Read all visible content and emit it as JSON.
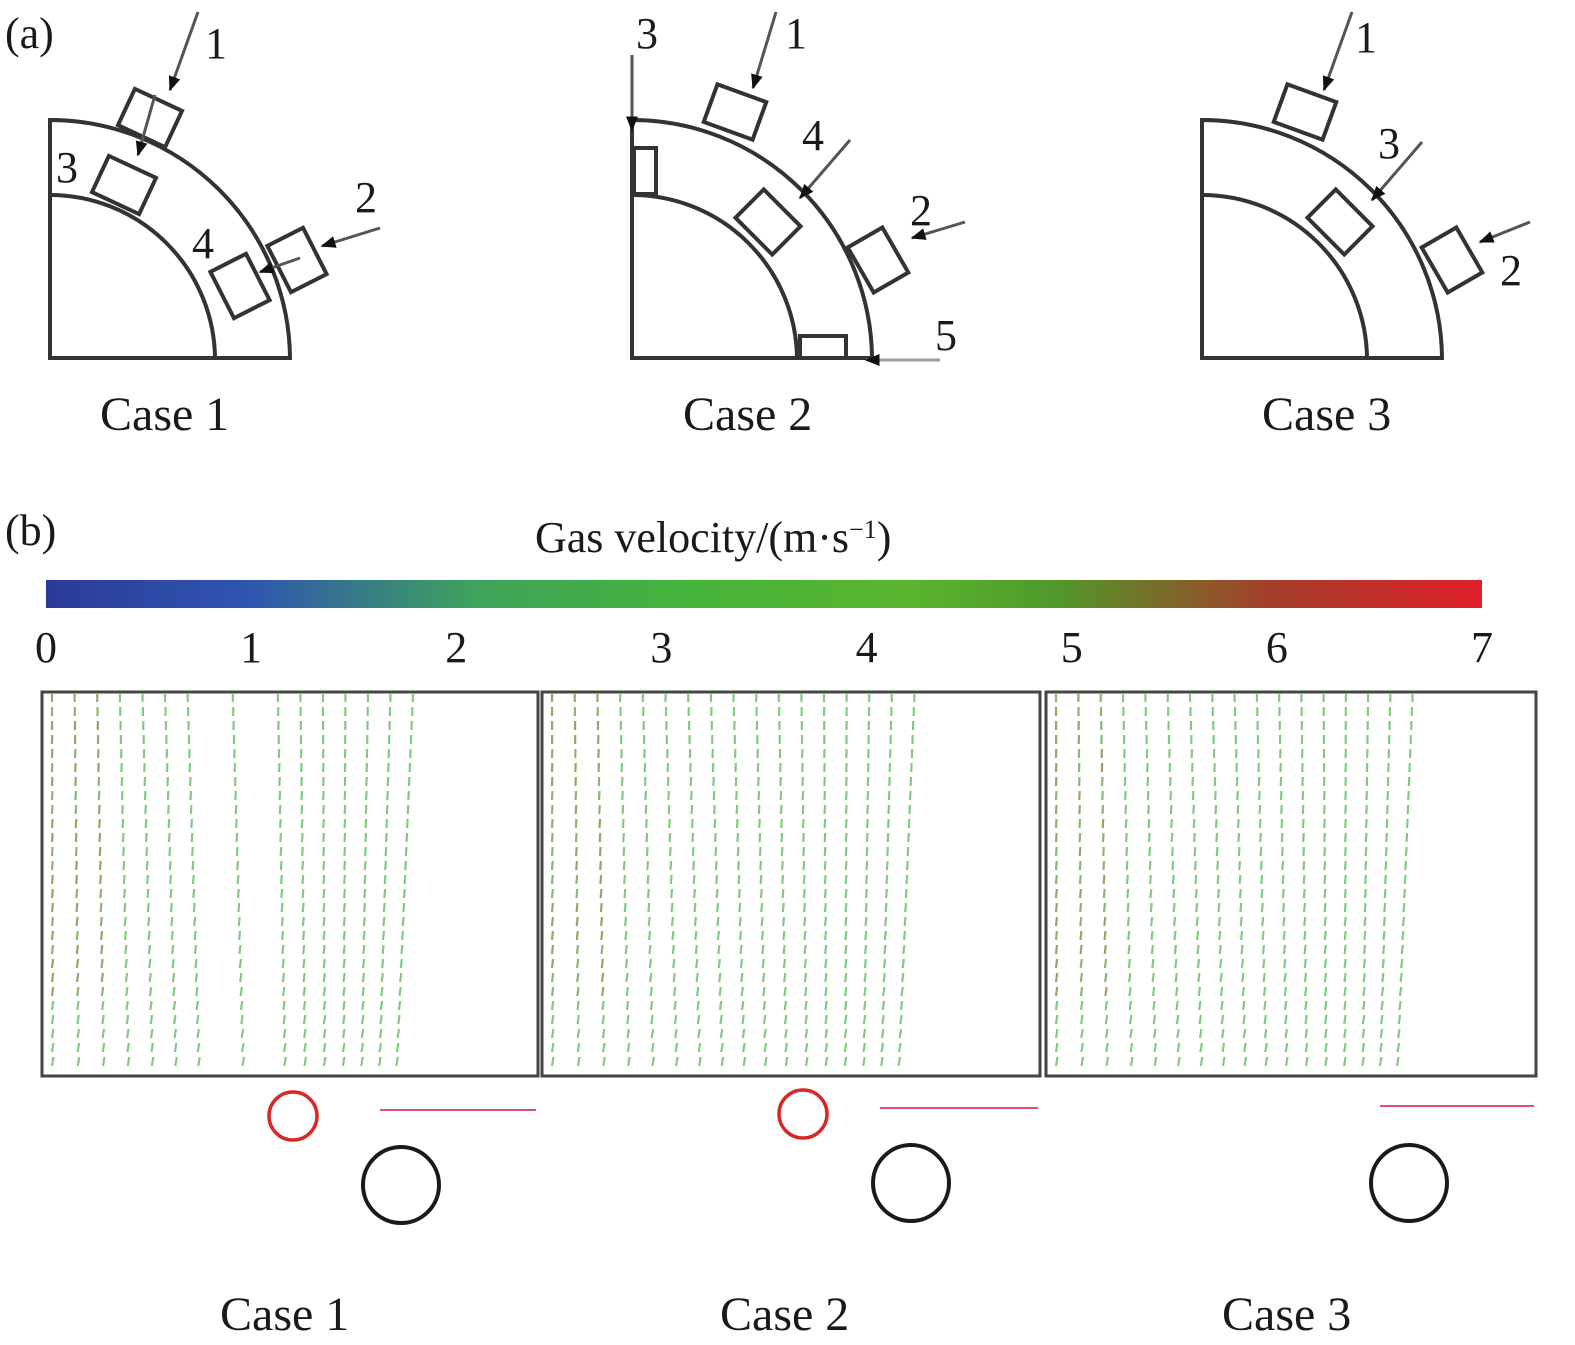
{
  "panel_a": {
    "label": "(a)",
    "cases": [
      {
        "caption": "Case 1",
        "nozzles": [
          "1",
          "2",
          "3",
          "4"
        ]
      },
      {
        "caption": "Case 2",
        "nozzles": [
          "1",
          "2",
          "3",
          "4",
          "5"
        ]
      },
      {
        "caption": "Case 3",
        "nozzles": [
          "1",
          "2",
          "3"
        ]
      }
    ]
  },
  "panel_b": {
    "label": "(b)",
    "colorbar": {
      "title": "Gas velocity/(m·s",
      "title_sup": "−1",
      "title_end": ")",
      "ticks": [
        "0",
        "1",
        "2",
        "3",
        "4",
        "5",
        "6",
        "7"
      ],
      "colors": [
        "#2b3a9a",
        "#2f55b0",
        "#3fa35a",
        "#45b43a",
        "#5ab52e",
        "#4f9a2a",
        "#a3402a",
        "#e0202a"
      ]
    },
    "cases": [
      "Case 1",
      "Case 2",
      "Case 3"
    ],
    "marker_colors": {
      "red_circle": "#d82828",
      "black_circle": "#1a1a1a"
    }
  }
}
